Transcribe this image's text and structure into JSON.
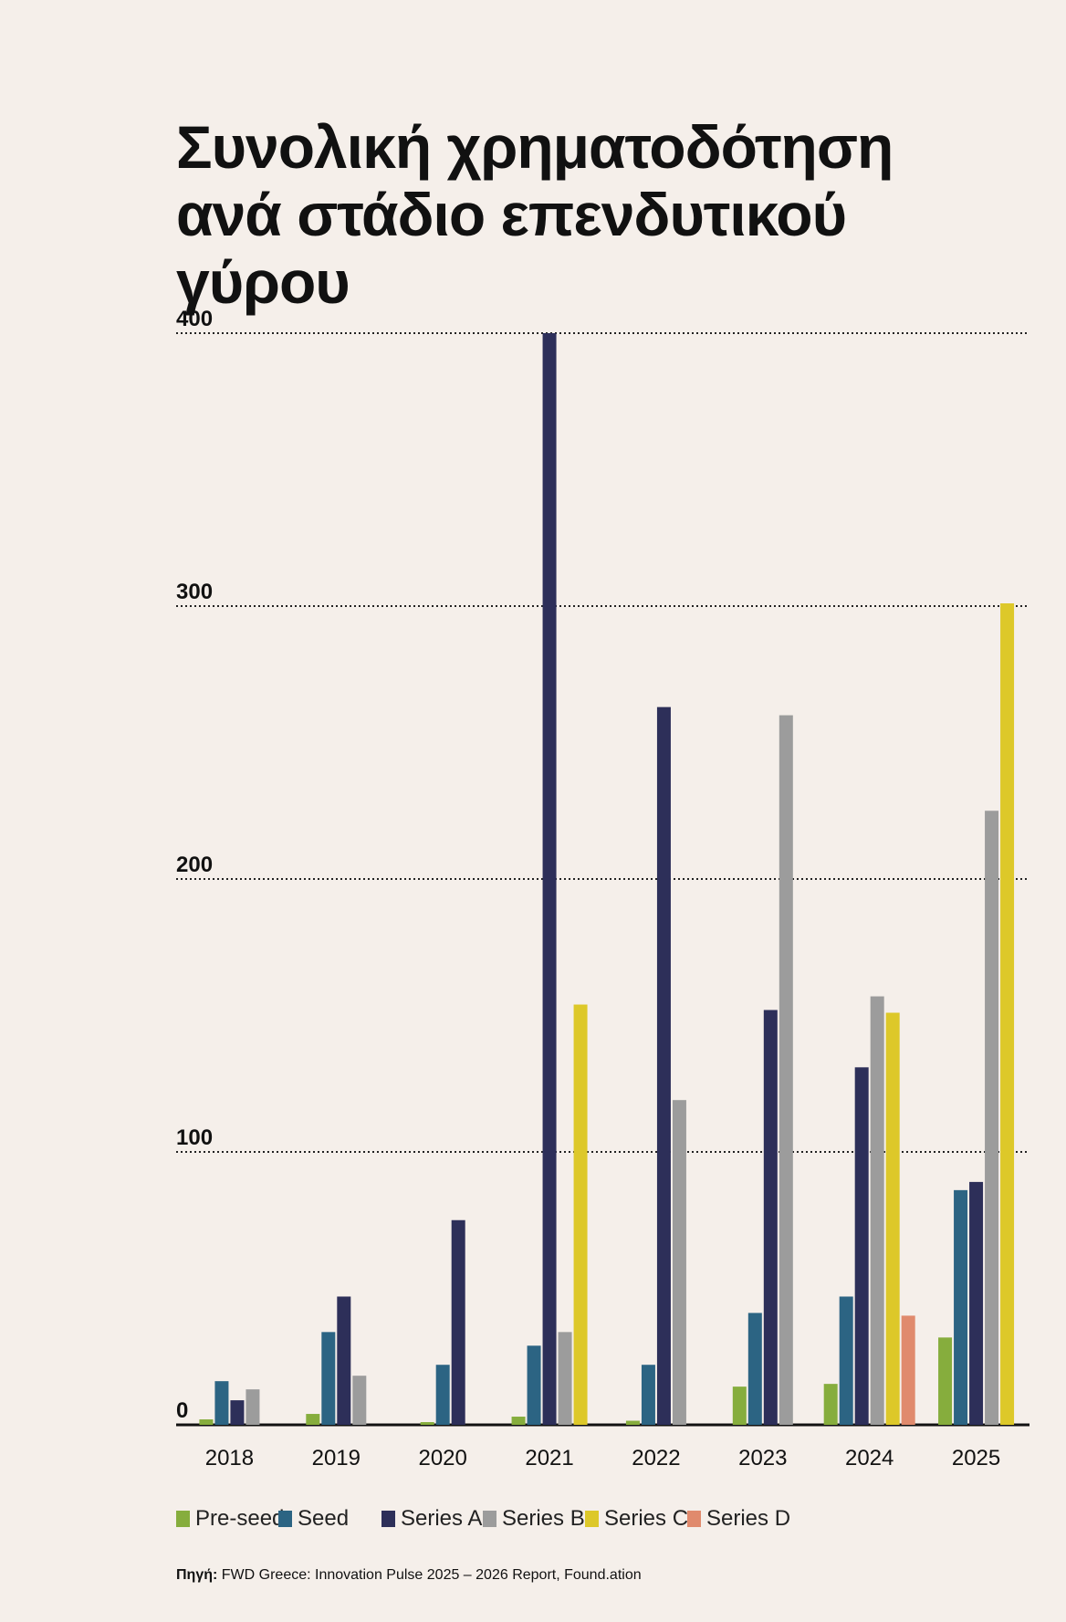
{
  "title": {
    "line1": "Συνολική χρηματοδότηση",
    "line2": "ανά στάδιο επενδυτικού γύρου"
  },
  "chart_data": {
    "type": "bar",
    "categories": [
      "2018",
      "2019",
      "2020",
      "2021",
      "2022",
      "2023",
      "2024",
      "2025"
    ],
    "ylim": [
      0,
      400
    ],
    "yticks": [
      0,
      100,
      200,
      300,
      400
    ],
    "grid": "dotted horizontal",
    "legend_position": "bottom",
    "series": [
      {
        "name": "Pre-seed",
        "color": "#86ad3d",
        "values": [
          2,
          4,
          1,
          3,
          1.5,
          14,
          15,
          32
        ]
      },
      {
        "name": "Seed",
        "color": "#2c6483",
        "values": [
          16,
          34,
          22,
          29,
          22,
          41,
          47,
          86
        ]
      },
      {
        "name": "Series A",
        "color": "#2d2f59",
        "values": [
          9,
          47,
          75,
          400,
          263,
          152,
          131,
          89
        ]
      },
      {
        "name": "Series B",
        "color": "#9c9c9c",
        "values": [
          13,
          18,
          null,
          34,
          119,
          260,
          157,
          225
        ]
      },
      {
        "name": "Series C",
        "color": "#ddc829",
        "values": [
          null,
          null,
          null,
          154,
          null,
          null,
          151,
          301
        ]
      },
      {
        "name": "Series D",
        "color": "#e08a6d",
        "values": [
          null,
          null,
          null,
          null,
          null,
          null,
          40,
          null
        ]
      }
    ]
  },
  "legend": [
    {
      "label": "Pre-seed",
      "color": "#86ad3d"
    },
    {
      "label": "Seed",
      "color": "#2c6483"
    },
    {
      "label": "Series A",
      "color": "#2d2f59"
    },
    {
      "label": "Series B",
      "color": "#9c9c9c"
    },
    {
      "label": "Series C",
      "color": "#ddc829"
    },
    {
      "label": "Series D",
      "color": "#e08a6d"
    }
  ],
  "source": {
    "label": "Πηγή:",
    "text": "FWD Greece: Innovation Pulse 2025 – 2026 Report, Found.ation"
  }
}
